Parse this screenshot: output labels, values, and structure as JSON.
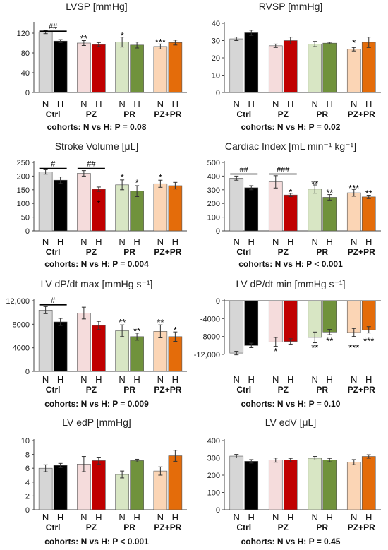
{
  "group_labels": [
    "Ctrl",
    "PZ",
    "PR",
    "PZ+PR"
  ],
  "bar_labels": [
    "N",
    "H"
  ],
  "colors": {
    "Ctrl": [
      "#d6d6d6",
      "#000000"
    ],
    "PZ": [
      "#f5dcdc",
      "#c00000"
    ],
    "PR": [
      "#d8e6c4",
      "#70923c"
    ],
    "PZ+PR": [
      "#fbd5b5",
      "#e46c0a"
    ]
  },
  "chart_data": [
    {
      "type": "bar",
      "title": "LVSP [mmHg]",
      "categories": [
        "Ctrl",
        "PZ",
        "PR",
        "PZ+PR"
      ],
      "series": [
        {
          "name": "N",
          "values": [
            122,
            100,
            102,
            93
          ],
          "err": [
            3,
            5,
            10,
            5
          ]
        },
        {
          "name": "H",
          "values": [
            104,
            97,
            96,
            101
          ],
          "err": [
            3,
            4,
            6,
            5
          ]
        }
      ],
      "ylim": [
        0,
        140
      ],
      "ticks": [
        0,
        40,
        80,
        120
      ],
      "tick_labels": [
        "0",
        "40",
        "80",
        "120"
      ],
      "footer": "cohorts: N vs H: P = 0.08",
      "annotations": [
        {
          "group": 0,
          "text": "##",
          "bracket": true,
          "value": 124
        },
        {
          "group": 1,
          "bar": 0,
          "text": "**",
          "value": 110
        },
        {
          "group": 2,
          "bar": 0,
          "text": "*",
          "value": 116
        },
        {
          "group": 3,
          "bar": 0,
          "text": "***",
          "value": 103
        }
      ]
    },
    {
      "type": "bar",
      "title": "RVSP [mmHg]",
      "categories": [
        "Ctrl",
        "PZ",
        "PR",
        "PZ+PR"
      ],
      "series": [
        {
          "name": "N",
          "values": [
            31,
            27,
            28,
            25
          ],
          "err": [
            1,
            1,
            1.5,
            1
          ]
        },
        {
          "name": "H",
          "values": [
            34.5,
            30,
            28.5,
            29
          ],
          "err": [
            1.5,
            2,
            0.5,
            3
          ]
        }
      ],
      "ylim": [
        0,
        40
      ],
      "ticks": [
        0,
        10,
        20,
        30,
        40
      ],
      "tick_labels": [
        "0",
        "10",
        "20",
        "30",
        "40"
      ],
      "footer": "cohorts: N vs H: P = 0.02",
      "annotations": [
        {
          "group": 3,
          "bar": 0,
          "text": "*",
          "value": 29
        }
      ]
    },
    {
      "type": "bar",
      "title": "Stroke Volume [μL]",
      "categories": [
        "Ctrl",
        "PZ",
        "PR",
        "PZ+PR"
      ],
      "series": [
        {
          "name": "N",
          "values": [
            215,
            210,
            168,
            172
          ],
          "err": [
            8,
            10,
            18,
            13
          ]
        },
        {
          "name": "H",
          "values": [
            185,
            152,
            145,
            165
          ],
          "err": [
            12,
            8,
            20,
            12
          ]
        }
      ],
      "ylim": [
        0,
        250
      ],
      "ticks": [
        0,
        50,
        100,
        150,
        200,
        250
      ],
      "tick_labels": [
        "0",
        "50",
        "100",
        "150",
        "200",
        "250"
      ],
      "footer": "cohorts: N vs H: P = 0.004",
      "annotations": [
        {
          "group": 0,
          "text": "#",
          "bracket": true,
          "value": 228
        },
        {
          "group": 1,
          "text": "##",
          "bracket": true,
          "value": 228
        },
        {
          "group": 1,
          "bar": 1,
          "text": "*",
          "value": 102,
          "below": true
        },
        {
          "group": 2,
          "bar": 0,
          "text": "*",
          "value": 197
        },
        {
          "group": 2,
          "bar": 1,
          "text": "*",
          "value": 176
        },
        {
          "group": 3,
          "bar": 0,
          "text": "*",
          "value": 197
        }
      ]
    },
    {
      "type": "bar",
      "title": "Cardiac Index [mL min⁻¹ kg⁻¹]",
      "categories": [
        "Ctrl",
        "PZ",
        "PR",
        "PZ+PR"
      ],
      "series": [
        {
          "name": "N",
          "values": [
            385,
            358,
            305,
            278
          ],
          "err": [
            15,
            45,
            30,
            25
          ]
        },
        {
          "name": "H",
          "values": [
            315,
            262,
            245,
            248
          ],
          "err": [
            15,
            12,
            20,
            12
          ]
        }
      ],
      "ylim": [
        0,
        500
      ],
      "ticks": [
        0,
        100,
        200,
        300,
        400,
        500
      ],
      "tick_labels": [
        "0",
        "100",
        "200",
        "300",
        "400",
        "500"
      ],
      "footer": "cohorts: N vs H: P < 0.001",
      "annotations": [
        {
          "group": 0,
          "text": "##",
          "bracket": true,
          "value": 415
        },
        {
          "group": 1,
          "text": "###",
          "bracket": true,
          "value": 415
        },
        {
          "group": 1,
          "bar": 1,
          "text": "*",
          "value": 285
        },
        {
          "group": 2,
          "bar": 0,
          "text": "**",
          "value": 345
        },
        {
          "group": 2,
          "bar": 1,
          "text": "**",
          "value": 280
        },
        {
          "group": 3,
          "bar": 0,
          "text": "***",
          "value": 315
        },
        {
          "group": 3,
          "bar": 1,
          "text": "**",
          "value": 275
        }
      ]
    },
    {
      "type": "bar",
      "title": "LV dP/dt max [mmHg s⁻¹]",
      "categories": [
        "Ctrl",
        "PZ",
        "PR",
        "PZ+PR"
      ],
      "series": [
        {
          "name": "N",
          "values": [
            10400,
            9900,
            6900,
            6800
          ],
          "err": [
            600,
            1000,
            1000,
            1100
          ]
        },
        {
          "name": "H",
          "values": [
            8400,
            7800,
            5900,
            5900
          ],
          "err": [
            600,
            700,
            600,
            800
          ]
        }
      ],
      "ylim": [
        0,
        12000
      ],
      "ticks": [
        0,
        4000,
        8000,
        12000
      ],
      "tick_labels": [
        "0",
        "4000",
        "8000",
        "12,000"
      ],
      "footer": "cohorts: N vs H: P = 0.009",
      "annotations": [
        {
          "group": 0,
          "text": "#",
          "bracket": true,
          "value": 11300
        },
        {
          "group": 2,
          "bar": 0,
          "text": "**",
          "value": 8400
        },
        {
          "group": 2,
          "bar": 1,
          "text": "**",
          "value": 6900
        },
        {
          "group": 3,
          "bar": 0,
          "text": "**",
          "value": 8400
        },
        {
          "group": 3,
          "bar": 1,
          "text": "*",
          "value": 7100
        }
      ]
    },
    {
      "type": "bar",
      "title": "LV dP/dt min [mmHg s⁻¹]",
      "categories": [
        "Ctrl",
        "PZ",
        "PR",
        "PZ+PR"
      ],
      "series": [
        {
          "name": "N",
          "values": [
            -11700,
            -9200,
            -8200,
            -7100
          ],
          "err": [
            400,
            1000,
            1200,
            900
          ]
        },
        {
          "name": "H",
          "values": [
            -10000,
            -9100,
            -7000,
            -6500
          ],
          "err": [
            500,
            600,
            600,
            700
          ]
        }
      ],
      "ylim": [
        -12000,
        0
      ],
      "ticks": [
        -12000,
        -8000,
        -4000,
        0
      ],
      "tick_labels": [
        "-12,000",
        "-8000",
        "-4000",
        "0"
      ],
      "footer": "cohorts: N vs H: P = 0.10",
      "annotations": [
        {
          "group": 1,
          "bar": 0,
          "text": "*",
          "value": -11200
        },
        {
          "group": 2,
          "bar": 0,
          "text": "**",
          "value": -10400
        },
        {
          "group": 2,
          "bar": 1,
          "text": "**",
          "value": -8900
        },
        {
          "group": 3,
          "bar": 0,
          "text": "***",
          "value": -10400
        },
        {
          "group": 3,
          "bar": 1,
          "text": "***",
          "value": -8900
        }
      ]
    },
    {
      "type": "bar",
      "title": "LV edP [mmHg]",
      "categories": [
        "Ctrl",
        "PZ",
        "PR",
        "PZ+PR"
      ],
      "series": [
        {
          "name": "N",
          "values": [
            6.0,
            6.6,
            5.1,
            5.6
          ],
          "err": [
            0.5,
            1.1,
            0.5,
            0.6
          ]
        },
        {
          "name": "H",
          "values": [
            6.4,
            7.1,
            7.1,
            7.8
          ],
          "err": [
            0.3,
            0.5,
            0.2,
            0.8
          ]
        }
      ],
      "ylim": [
        0,
        10
      ],
      "ticks": [
        0,
        2,
        4,
        6,
        8,
        10
      ],
      "tick_labels": [
        "0",
        "2",
        "4",
        "6",
        "8",
        "10"
      ],
      "footer": "cohorts: N vs H: P < 0.001",
      "annotations": []
    },
    {
      "type": "bar",
      "title": "LV edV [μL]",
      "categories": [
        "Ctrl",
        "PZ",
        "PR",
        "PZ+PR"
      ],
      "series": [
        {
          "name": "N",
          "values": [
            310,
            287,
            298,
            275
          ],
          "err": [
            10,
            12,
            10,
            15
          ]
        },
        {
          "name": "H",
          "values": [
            280,
            287,
            287,
            308
          ],
          "err": [
            10,
            10,
            10,
            10
          ]
        }
      ],
      "ylim": [
        0,
        400
      ],
      "ticks": [
        0,
        100,
        200,
        300,
        400
      ],
      "tick_labels": [
        "0",
        "100",
        "200",
        "300",
        "400"
      ],
      "footer": "cohorts: N vs H: P = 0.45",
      "annotations": []
    }
  ]
}
